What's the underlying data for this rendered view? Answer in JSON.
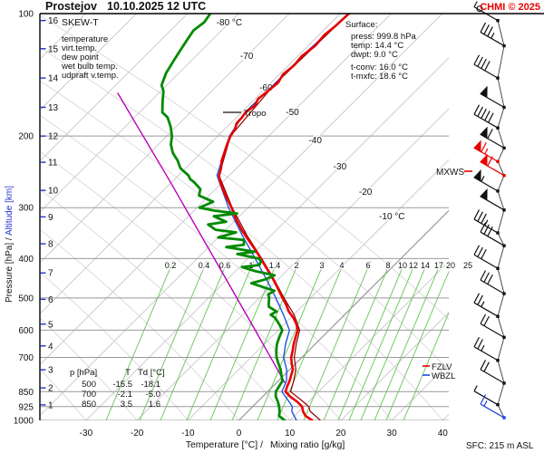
{
  "header": {
    "station": "Prostejov",
    "datetime": "10.10.2025 12 UTC",
    "copyright": "CHMI © 2025"
  },
  "legend": {
    "title": "SKEW-T",
    "items": [
      {
        "label": "temperature",
        "color": "#e60000"
      },
      {
        "label": "virt.temp.",
        "color": "#a33535"
      },
      {
        "label": "dew point",
        "color": "#008a00"
      },
      {
        "label": "wet bulb temp.",
        "color": "#2255dd"
      },
      {
        "label": "udpraft v.temp.",
        "color": "#cc22cc"
      }
    ]
  },
  "surface_box": {
    "heading": "Surface:",
    "lines": [
      {
        "text": "press: 999.8 hPa",
        "color": "#111111"
      },
      {
        "text": "temp: 14.4 °C",
        "color": "#e60000"
      },
      {
        "text": "dwpt: 9.0 °C",
        "color": "#008a00"
      },
      {
        "text": "t-conv: 16.0 °C",
        "color": "#111111"
      },
      {
        "text": "t-mxfc: 18.6 °C",
        "color": "#111111"
      }
    ]
  },
  "annotations": {
    "tropo": "Tropo",
    "mxws": "MXWS",
    "fzlv": "FZLV",
    "wbzl": "WBZL",
    "sfc": "SFC: 215 m ASL"
  },
  "table": {
    "headers": [
      "p [hPa]",
      "T",
      "Td [°C]"
    ],
    "rows": [
      [
        "500",
        "-15.5",
        "-18.1"
      ],
      [
        "700",
        "-2.1",
        "-5.0"
      ],
      [
        "850",
        "3.5",
        "1.6"
      ]
    ]
  },
  "axes": {
    "x_title_black": "Temperature [°C]  /",
    "x_title_green": "Mixing ratio [g/kg]",
    "y_title_pressure": "Pressure [hPa]",
    "y_title_sep": "  /  ",
    "y_title_altitude": "Altitude [km]",
    "pressure_ticks": [
      100,
      200,
      300,
      400,
      500,
      600,
      700,
      850,
      925,
      1000
    ],
    "pressure_gridlines": [
      200,
      300,
      400,
      500,
      600,
      700,
      850,
      925,
      1000
    ],
    "altitude_ticks": [
      {
        "km": 16,
        "p": 104
      },
      {
        "km": 15,
        "p": 122
      },
      {
        "km": 14,
        "p": 144
      },
      {
        "km": 13,
        "p": 170
      },
      {
        "km": 12,
        "p": 200
      },
      {
        "km": 11,
        "p": 232
      },
      {
        "km": 10,
        "p": 272
      },
      {
        "km": 9,
        "p": 316
      },
      {
        "km": 8,
        "p": 368
      },
      {
        "km": 7,
        "p": 434
      },
      {
        "km": 6,
        "p": 504
      },
      {
        "km": 5,
        "p": 580
      },
      {
        "km": 4,
        "p": 656
      },
      {
        "km": 3,
        "p": 751
      },
      {
        "km": 2,
        "p": 832
      },
      {
        "km": 1,
        "p": 916
      }
    ],
    "temp_ticks": [
      -30,
      -20,
      -10,
      0,
      10,
      20,
      30,
      40
    ],
    "isotherm_labels": [
      {
        "t": -80,
        "text": "-80 °C",
        "y": 25
      },
      {
        "t": -70,
        "text": "-70",
        "y": 62
      },
      {
        "t": -60,
        "text": "-60",
        "y": 97
      },
      {
        "t": -50,
        "text": "-50",
        "y": 124
      },
      {
        "t": -40,
        "text": "-40",
        "y": 155
      },
      {
        "t": -30,
        "text": "-30",
        "y": 184
      },
      {
        "t": -20,
        "text": "-20",
        "y": 212
      },
      {
        "t": -10,
        "text": "-10 °C",
        "y": 239
      }
    ],
    "mixing_ratio_labels": [
      {
        "w": "0.2",
        "x": 188
      },
      {
        "w": "0.4",
        "x": 225
      },
      {
        "w": "0.6",
        "x": 248
      },
      {
        "w": "1",
        "x": 277
      },
      {
        "w": "1.4",
        "x": 303
      },
      {
        "w": "2",
        "x": 327
      },
      {
        "w": "3",
        "x": 355
      },
      {
        "w": "4",
        "x": 377
      },
      {
        "w": "6",
        "x": 406
      },
      {
        "w": "8",
        "x": 428
      },
      {
        "w": "10",
        "x": 444
      },
      {
        "w": "12",
        "x": 456
      },
      {
        "w": "14",
        "x": 469
      },
      {
        "w": "17",
        "x": 484
      },
      {
        "w": "20",
        "x": 497
      },
      {
        "w": "25",
        "x": 516
      }
    ]
  },
  "chart_data": {
    "type": "line",
    "title": "SKEW-T sounding, Prostejov, 10.10.2025 12 UTC",
    "xlabel": "Temperature [°C] / Mixing ratio [g/kg]",
    "ylabel": "Pressure [hPa] / Altitude [km]",
    "y_axis_range_hpa": [
      100,
      1000
    ],
    "x_axis_range_c": [
      -30,
      40
    ],
    "tropopause_hpa": 173,
    "series": [
      {
        "name": "updraft_virt_temp",
        "color": "#bb00bb",
        "width": 1.4,
        "points": [
          [
            809,
            1.7
          ],
          [
            585,
            -15.9
          ],
          [
            429,
            -32.8
          ],
          [
            256,
            -61.0
          ],
          [
            157,
            -88.0
          ]
        ]
      },
      {
        "name": "wet_bulb",
        "color": "#2255dd",
        "width": 1.4,
        "points": [
          [
            1000,
            11.3
          ],
          [
            950,
            8.6
          ],
          [
            925,
            7.8
          ],
          [
            900,
            6.2
          ],
          [
            850,
            2.8
          ],
          [
            800,
            1.6
          ],
          [
            750,
            -0.6
          ],
          [
            700,
            -3.6
          ],
          [
            650,
            -5.8
          ],
          [
            600,
            -7.8
          ],
          [
            550,
            -12.0
          ],
          [
            500,
            -16.8
          ],
          [
            450,
            -22.3
          ],
          [
            400,
            -28.6
          ],
          [
            350,
            -35.8
          ],
          [
            300,
            -43.8
          ],
          [
            250,
            -52.4
          ],
          [
            200,
            -57.7
          ],
          [
            175,
            -59.3
          ],
          [
            150,
            -59.1
          ],
          [
            125,
            -59.1
          ],
          [
            100,
            -58.4
          ]
        ]
      },
      {
        "name": "virt_temp",
        "color": "#8b0000",
        "width": 1.2,
        "points": [
          [
            1000,
            16.0
          ],
          [
            950,
            12.2
          ],
          [
            925,
            11.0
          ],
          [
            900,
            9.0
          ],
          [
            850,
            4.5
          ],
          [
            800,
            3.0
          ],
          [
            750,
            1.2
          ],
          [
            700,
            -1.5
          ],
          [
            650,
            -3.7
          ],
          [
            600,
            -5.8
          ],
          [
            550,
            -9.9
          ],
          [
            500,
            -15.2
          ],
          [
            450,
            -20.8
          ],
          [
            400,
            -27.3
          ],
          [
            350,
            -34.9
          ],
          [
            300,
            -43.1
          ],
          [
            250,
            -52.0
          ],
          [
            200,
            -57.5
          ],
          [
            150,
            -59.0
          ],
          [
            100,
            -58.3
          ]
        ]
      },
      {
        "name": "temperature",
        "color": "#e60000",
        "width": 2.6,
        "points": [
          [
            1000,
            14.4
          ],
          [
            975,
            12.2
          ],
          [
            950,
            10.8
          ],
          [
            925,
            9.7
          ],
          [
            900,
            7.8
          ],
          [
            875,
            5.5
          ],
          [
            850,
            3.5
          ],
          [
            825,
            2.8
          ],
          [
            800,
            2.2
          ],
          [
            775,
            1.4
          ],
          [
            750,
            0.6
          ],
          [
            725,
            -0.8
          ],
          [
            700,
            -2.1
          ],
          [
            675,
            -3.1
          ],
          [
            650,
            -4.2
          ],
          [
            625,
            -5.2
          ],
          [
            600,
            -6.2
          ],
          [
            580,
            -7.6
          ],
          [
            560,
            -9.4
          ],
          [
            540,
            -11.6
          ],
          [
            520,
            -13.4
          ],
          [
            500,
            -15.5
          ],
          [
            480,
            -17.6
          ],
          [
            460,
            -19.8
          ],
          [
            440,
            -22.2
          ],
          [
            420,
            -24.8
          ],
          [
            400,
            -27.5
          ],
          [
            380,
            -30.4
          ],
          [
            360,
            -33.6
          ],
          [
            340,
            -36.9
          ],
          [
            320,
            -40.1
          ],
          [
            300,
            -43.2
          ],
          [
            280,
            -46.8
          ],
          [
            260,
            -50.4
          ],
          [
            250,
            -52.0
          ],
          [
            240,
            -53.0
          ],
          [
            230,
            -54.4
          ],
          [
            220,
            -55.4
          ],
          [
            210,
            -56.5
          ],
          [
            200,
            -57.5
          ],
          [
            193,
            -57.9
          ],
          [
            186,
            -58.8
          ],
          [
            180,
            -58.9
          ],
          [
            175,
            -59.2
          ],
          [
            168,
            -58.7
          ],
          [
            162,
            -59.4
          ],
          [
            155,
            -59.0
          ],
          [
            148,
            -58.6
          ],
          [
            141,
            -59.3
          ],
          [
            134,
            -58.9
          ],
          [
            127,
            -59.2
          ],
          [
            120,
            -58.6
          ],
          [
            113,
            -58.9
          ],
          [
            107,
            -58.5
          ],
          [
            100,
            -58.3
          ]
        ]
      },
      {
        "name": "dew_point",
        "color": "#008a00",
        "width": 2.8,
        "points": [
          [
            1000,
            9.0
          ],
          [
            975,
            7.0
          ],
          [
            950,
            6.2
          ],
          [
            925,
            5.2
          ],
          [
            900,
            4.0
          ],
          [
            875,
            2.6
          ],
          [
            850,
            1.6
          ],
          [
            825,
            1.2
          ],
          [
            800,
            0.8
          ],
          [
            775,
            -0.5
          ],
          [
            750,
            -1.8
          ],
          [
            725,
            -3.4
          ],
          [
            700,
            -5.0
          ],
          [
            675,
            -6.3
          ],
          [
            650,
            -7.5
          ],
          [
            625,
            -8.4
          ],
          [
            600,
            -9.2
          ],
          [
            580,
            -11.0
          ],
          [
            560,
            -13.0
          ],
          [
            550,
            -14.5
          ],
          [
            540,
            -14.0
          ],
          [
            525,
            -16.5
          ],
          [
            510,
            -17.5
          ],
          [
            500,
            -18.1
          ],
          [
            490,
            -19.0
          ],
          [
            480,
            -18.5
          ],
          [
            470,
            -21.5
          ],
          [
            460,
            -24.5
          ],
          [
            450,
            -22.5
          ],
          [
            440,
            -21.5
          ],
          [
            430,
            -26.0
          ],
          [
            420,
            -29.5
          ],
          [
            415,
            -26.5
          ],
          [
            405,
            -27.0
          ],
          [
            400,
            -28.0
          ],
          [
            390,
            -33.0
          ],
          [
            385,
            -30.0
          ],
          [
            375,
            -36.5
          ],
          [
            370,
            -33.5
          ],
          [
            360,
            -34.5
          ],
          [
            355,
            -40.0
          ],
          [
            345,
            -37.5
          ],
          [
            340,
            -42.0
          ],
          [
            330,
            -44.5
          ],
          [
            325,
            -41.5
          ],
          [
            315,
            -45.0
          ],
          [
            310,
            -41.0
          ],
          [
            305,
            -46.0
          ],
          [
            300,
            -49.5
          ],
          [
            290,
            -48.0
          ],
          [
            280,
            -52.0
          ],
          [
            270,
            -53.0
          ],
          [
            260,
            -55.5
          ],
          [
            255,
            -57.0
          ],
          [
            250,
            -58.0
          ],
          [
            240,
            -61.0
          ],
          [
            230,
            -63.0
          ],
          [
            220,
            -65.5
          ],
          [
            210,
            -67.5
          ],
          [
            200,
            -69.0
          ],
          [
            190,
            -71.0
          ],
          [
            180,
            -73.5
          ],
          [
            175,
            -75.5
          ],
          [
            165,
            -77.5
          ],
          [
            155,
            -79.5
          ],
          [
            150,
            -81.0
          ],
          [
            140,
            -82.5
          ],
          [
            130,
            -83.5
          ],
          [
            125,
            -84.0
          ],
          [
            115,
            -85.0
          ],
          [
            110,
            -85.5
          ],
          [
            105,
            -85.0
          ],
          [
            100,
            -85.5
          ]
        ]
      }
    ],
    "wind_barbs": [
      {
        "p": 104,
        "feathers": [
          0.5
        ],
        "color": "#111111",
        "circle": true
      },
      {
        "p": 120,
        "feathers": [
          1,
          1,
          1,
          0.5
        ],
        "color": "#111111"
      },
      {
        "p": 144,
        "feathers": [
          1,
          1,
          1,
          1
        ],
        "color": "#111111"
      },
      {
        "p": 170,
        "feathers": [
          "p"
        ],
        "color": "#111111"
      },
      {
        "p": 191,
        "feathers": [
          1,
          1,
          1,
          1,
          1
        ],
        "color": "#111111"
      },
      {
        "p": 214,
        "feathers": [
          "p",
          1
        ],
        "color": "#111111"
      },
      {
        "p": 231,
        "feathers": [
          "p",
          1,
          0.5
        ],
        "color": "#e60000"
      },
      {
        "p": 250,
        "feathers": [
          "p",
          1
        ],
        "color": "#e60000"
      },
      {
        "p": 273,
        "feathers": [
          "p",
          0.5
        ],
        "color": "#111111"
      },
      {
        "p": 304,
        "feathers": [
          "p"
        ],
        "color": "#111111"
      },
      {
        "p": 346,
        "feathers": [
          1,
          1,
          1,
          0.5
        ],
        "color": "#111111"
      },
      {
        "p": 372,
        "feathers": [
          1,
          1,
          1
        ],
        "color": "#111111"
      },
      {
        "p": 423,
        "feathers": [
          1,
          1,
          1
        ],
        "color": "#111111"
      },
      {
        "p": 488,
        "feathers": [
          1,
          1,
          1
        ],
        "color": "#111111"
      },
      {
        "p": 555,
        "feathers": [
          1,
          1,
          0.5
        ],
        "color": "#111111"
      },
      {
        "p": 625,
        "feathers": [
          1,
          1
        ],
        "color": "#111111"
      },
      {
        "p": 712,
        "feathers": [
          1,
          1,
          0.5
        ],
        "color": "#111111"
      },
      {
        "p": 810,
        "feathers": [
          1,
          1
        ],
        "color": "#111111"
      },
      {
        "p": 915,
        "feathers": [
          0.5
        ],
        "color": "#111111"
      },
      {
        "p": 985,
        "feathers": [
          1,
          0.5
        ],
        "color": "#2244dd"
      }
    ]
  }
}
